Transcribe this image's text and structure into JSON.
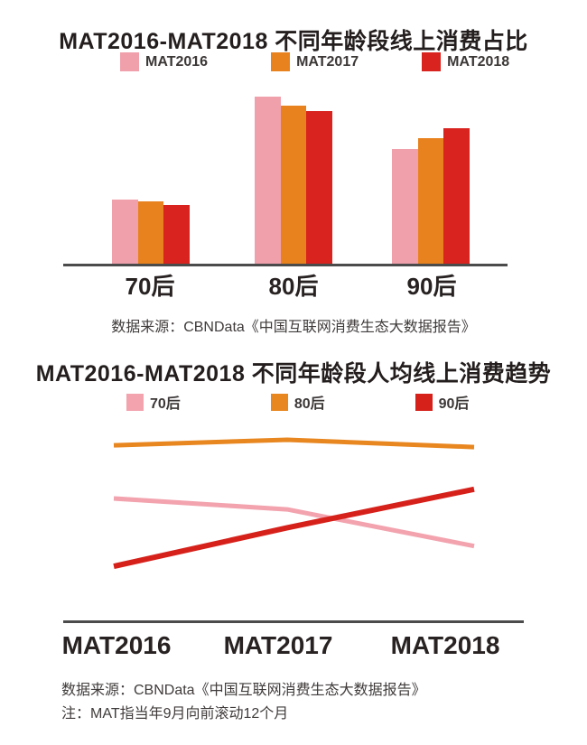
{
  "colors": {
    "pink": "#F0A0AB",
    "orange": "#E8821E",
    "red": "#D8231E",
    "axis": "#4B4B4B",
    "title_text": "#241E1E",
    "body_text": "#403B3B"
  },
  "chart_data": [
    {
      "type": "bar",
      "title": "MAT2016-MAT2018 不同年龄段线上消费占比",
      "categories": [
        "70后",
        "80后",
        "90后"
      ],
      "series": [
        {
          "name": "MAT2016",
          "color": "#F0A0AB",
          "values": [
            18.6,
            48.3,
            33.1
          ]
        },
        {
          "name": "MAT2017",
          "color": "#E8821E",
          "values": [
            18.1,
            45.7,
            36.2
          ]
        },
        {
          "name": "MAT2018",
          "color": "#D8231E",
          "values": [
            16.9,
            44.1,
            39.0
          ]
        }
      ],
      "xlabel": "",
      "ylabel": "",
      "ylim": [
        0,
        50
      ],
      "grid": false,
      "legend_position": "top",
      "source": "数据来源：CBNData《中国互联网消费生态大数据报告》"
    },
    {
      "type": "line",
      "title": "MAT2016-MAT2018 不同年龄段人均线上消费趋势",
      "x": [
        "MAT2016",
        "MAT2017",
        "MAT2018"
      ],
      "series": [
        {
          "name": "70后",
          "color": "#F2A3AE",
          "values": [
            68,
            62,
            42
          ]
        },
        {
          "name": "80后",
          "color": "#E8861F",
          "values": [
            97,
            100,
            96
          ]
        },
        {
          "name": "90后",
          "color": "#D6211B",
          "values": [
            31,
            52,
            73
          ]
        }
      ],
      "xlabel": "",
      "ylabel": "",
      "ylim": [
        0,
        110
      ],
      "grid": false,
      "legend_position": "top",
      "source": "数据来源：CBNData《中国互联网消费生态大数据报告》",
      "note": "注：MAT指当年9月向前滚动12个月"
    }
  ]
}
